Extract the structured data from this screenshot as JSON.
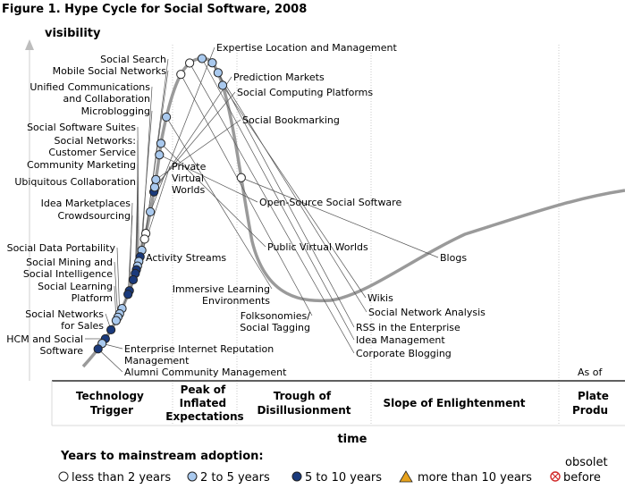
{
  "figure_title": "Figure 1. Hype Cycle for Social Software, 2008",
  "colors": {
    "curve": "#9a9a9a",
    "less_than_2": "#ffffff",
    "two_to_five": "#a9c9ee",
    "five_to_ten": "#1a3a7c",
    "more_than_10": "#e7a21d",
    "obsolete": "#d12a2a"
  },
  "chart_data": {
    "type": "scatter",
    "title": "Figure 1. Hype Cycle for Social Software, 2008",
    "ylabel": "visibility",
    "xlabel": "time",
    "phases": [
      {
        "id": "tech-trigger",
        "lines": [
          "Technology",
          "Trigger"
        ]
      },
      {
        "id": "peak",
        "lines": [
          "Peak of",
          "Inflated",
          "Expectations"
        ]
      },
      {
        "id": "trough",
        "lines": [
          "Trough of",
          "Disillusionment"
        ]
      },
      {
        "id": "slope",
        "lines": [
          "Slope of Enlightenment"
        ]
      },
      {
        "id": "plateau",
        "lines": [
          "Plate",
          "Produ"
        ]
      }
    ],
    "as_of": "As of",
    "legend": {
      "title": "Years to mainstream adoption:",
      "items": [
        {
          "key": "lt2",
          "label": "less than 2 years"
        },
        {
          "key": "2to5",
          "label": "2 to 5 years"
        },
        {
          "key": "5to10",
          "label": "5 to 10 years"
        },
        {
          "key": "gt10",
          "label": "more than 10 years"
        },
        {
          "key": "obsolete",
          "label": "before",
          "extra": "obsolet"
        }
      ]
    },
    "technologies": [
      {
        "id": "social-search",
        "label": [
          "Social Search"
        ],
        "category": "lt2",
        "t": 0.155
      },
      {
        "id": "mobile-social-networks",
        "label": [
          "Mobile Social Networks"
        ],
        "category": "lt2",
        "t": 0.149
      },
      {
        "id": "unified-communications",
        "label": [
          "Unified Communications",
          "and Collaboration"
        ],
        "category": "2to5",
        "t": 0.137
      },
      {
        "id": "microblogging",
        "label": [
          "Microblogging"
        ],
        "category": "5to10",
        "t": 0.13
      },
      {
        "id": "social-software-suites",
        "label": [
          "Social Software Suites"
        ],
        "category": "2to5",
        "t": 0.125
      },
      {
        "id": "social-networks-cs",
        "label": [
          "Social Networks:",
          "Customer Service"
        ],
        "category": "2to5",
        "t": 0.12
      },
      {
        "id": "community-marketing",
        "label": [
          "Community Marketing"
        ],
        "category": "5to10",
        "t": 0.116
      },
      {
        "id": "ubiquitous-collaboration",
        "label": [
          "Ubiquitous Collaboration"
        ],
        "category": "5to10",
        "t": 0.112
      },
      {
        "id": "private-virtual-worlds",
        "label": [
          "Private",
          "Virtual",
          "Worlds"
        ],
        "category": "5to10",
        "t": 0.105
      },
      {
        "id": "idea-marketplaces",
        "label": [
          "Idea Marketplaces"
        ],
        "category": "5to10",
        "t": 0.093
      },
      {
        "id": "crowdsourcing",
        "label": [
          "Crowdsourcing"
        ],
        "category": "5to10",
        "t": 0.089
      },
      {
        "id": "activity-streams",
        "label": [
          "Activity Streams"
        ],
        "category": "2to5",
        "t": 0.073
      },
      {
        "id": "social-data-portability",
        "label": [
          "Social Data Portability"
        ],
        "category": "2to5",
        "t": 0.067
      },
      {
        "id": "social-mining",
        "label": [
          "Social Mining and",
          "Social Intelligence"
        ],
        "category": "2to5",
        "t": 0.063
      },
      {
        "id": "social-learning-platform",
        "label": [
          "Social Learning",
          "Platform"
        ],
        "category": "2to5",
        "t": 0.059
      },
      {
        "id": "social-networks-sales",
        "label": [
          "Social Networks",
          "for Sales"
        ],
        "category": "5to10",
        "t": 0.048
      },
      {
        "id": "hcm-social-software",
        "label": [
          "HCM and Social",
          "Software"
        ],
        "category": "5to10",
        "t": 0.037
      },
      {
        "id": "enterprise-reputation",
        "label": [
          "Enterprise Internet Reputation",
          "Management"
        ],
        "category": "2to5",
        "t": 0.031
      },
      {
        "id": "alumni-community",
        "label": [
          "Alumni Community Management"
        ],
        "category": "5to10",
        "t": 0.024
      },
      {
        "id": "expertise-location",
        "label": [
          "Expertise Location and Management"
        ],
        "category": "2to5",
        "t": 0.178
      },
      {
        "id": "prediction-markets",
        "label": [
          "Prediction Markets"
        ],
        "category": "5to10",
        "t": 0.199
      },
      {
        "id": "social-computing-platforms",
        "label": [
          "Social Computing Platforms"
        ],
        "category": "2to5",
        "t": 0.204
      },
      {
        "id": "social-bookmarking",
        "label": [
          "Social Bookmarking"
        ],
        "category": "2to5",
        "t": 0.212
      },
      {
        "id": "open-source-social-software",
        "label": [
          "Open-Source Social Software"
        ],
        "category": "2to5",
        "t": 0.238
      },
      {
        "id": "public-virtual-worlds",
        "label": [
          "Public Virtual Worlds"
        ],
        "category": "2to5",
        "t": 0.25
      },
      {
        "id": "immersive-learning",
        "label": [
          "Immersive Learning",
          "Environments"
        ],
        "category": "2to5",
        "t": 0.278
      },
      {
        "id": "folksonomies",
        "label": [
          "Folksonomies/",
          "Social Tagging"
        ],
        "category": "lt2",
        "t": 0.325
      },
      {
        "id": "corporate-blogging",
        "label": [
          "Corporate Blogging"
        ],
        "category": "lt2",
        "t": 0.34
      },
      {
        "id": "idea-management",
        "label": [
          "Idea Management"
        ],
        "category": "2to5",
        "t": 0.354
      },
      {
        "id": "rss-enterprise",
        "label": [
          "RSS in the Enterprise"
        ],
        "category": "2to5",
        "t": 0.366
      },
      {
        "id": "social-network-analysis",
        "label": [
          "Social Network Analysis"
        ],
        "category": "2to5",
        "t": 0.378
      },
      {
        "id": "wikis",
        "label": [
          "Wikis"
        ],
        "category": "2to5",
        "t": 0.392
      },
      {
        "id": "blogs",
        "label": [
          "Blogs"
        ],
        "category": "lt2",
        "t": 0.49
      }
    ]
  }
}
